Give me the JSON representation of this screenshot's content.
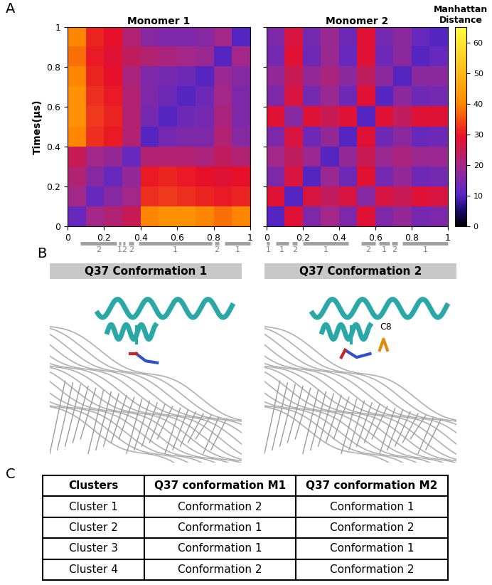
{
  "chart_data": [
    {
      "type": "heatmap",
      "title": "Monomer 1",
      "ylabel": "Times(μs)",
      "xlim": [
        0,
        1
      ],
      "ylim": [
        0,
        1
      ],
      "xticks": [
        0,
        0.2,
        0.4,
        0.6,
        0.8,
        1
      ],
      "yticks": [
        0,
        0.2,
        0.4,
        0.6,
        0.8,
        1
      ],
      "tick_labels": true,
      "cells": [
        [
          12,
          20,
          22,
          25,
          40,
          42,
          42,
          40,
          38,
          40
        ],
        [
          20,
          12,
          16,
          20,
          32,
          33,
          32,
          31,
          30,
          31
        ],
        [
          22,
          16,
          12,
          18,
          30,
          31,
          30,
          29,
          28,
          29
        ],
        [
          25,
          20,
          18,
          12,
          22,
          22,
          22,
          21,
          24,
          22
        ],
        [
          40,
          32,
          30,
          22,
          10,
          14,
          15,
          15,
          22,
          16
        ],
        [
          42,
          33,
          31,
          22,
          14,
          10,
          13,
          14,
          21,
          15
        ],
        [
          42,
          32,
          30,
          22,
          15,
          13,
          10,
          13,
          20,
          15
        ],
        [
          40,
          31,
          29,
          21,
          15,
          14,
          13,
          10,
          19,
          16
        ],
        [
          38,
          30,
          28,
          24,
          22,
          21,
          20,
          19,
          10,
          20
        ],
        [
          40,
          31,
          29,
          22,
          16,
          15,
          15,
          16,
          20,
          10
        ]
      ],
      "clusters": [
        {
          "start": 0.07,
          "end": 0.27,
          "label": 2
        },
        {
          "start": 0.28,
          "end": 0.29,
          "label": 1
        },
        {
          "start": 0.305,
          "end": 0.315,
          "label": 2
        },
        {
          "start": 0.335,
          "end": 0.36,
          "label": 2
        },
        {
          "start": 0.39,
          "end": 0.79,
          "label": 1
        },
        {
          "start": 0.805,
          "end": 0.83,
          "label": 2
        },
        {
          "start": 0.86,
          "end": 1.0,
          "label": 1
        }
      ]
    },
    {
      "type": "heatmap",
      "title": "Monomer 2",
      "xlim": [
        0,
        1
      ],
      "ylim": [
        0,
        1
      ],
      "xticks": [
        0,
        0.2,
        0.4,
        0.6,
        0.8,
        1
      ],
      "yticks": [
        0,
        0.2,
        0.4,
        0.6,
        0.8,
        1
      ],
      "tick_labels": "x",
      "cells": [
        [
          10,
          28,
          15,
          20,
          15,
          28,
          15,
          18,
          14,
          15
        ],
        [
          28,
          10,
          27,
          24,
          27,
          16,
          27,
          25,
          28,
          27
        ],
        [
          15,
          27,
          10,
          19,
          13,
          28,
          14,
          18,
          13,
          14
        ],
        [
          20,
          24,
          19,
          10,
          18,
          25,
          19,
          21,
          19,
          19
        ],
        [
          15,
          27,
          13,
          18,
          10,
          28,
          13,
          17,
          12,
          13
        ],
        [
          28,
          16,
          28,
          25,
          28,
          10,
          28,
          24,
          28,
          28
        ],
        [
          15,
          27,
          14,
          19,
          13,
          28,
          10,
          17,
          13,
          14
        ],
        [
          18,
          25,
          18,
          21,
          17,
          24,
          17,
          10,
          17,
          17
        ],
        [
          14,
          28,
          13,
          19,
          12,
          28,
          13,
          17,
          10,
          12
        ],
        [
          15,
          27,
          14,
          19,
          13,
          28,
          14,
          17,
          12,
          10
        ]
      ],
      "clusters": [
        {
          "start": 0.0,
          "end": 0.015,
          "label": 1
        },
        {
          "start": 0.05,
          "end": 0.12,
          "label": 1
        },
        {
          "start": 0.14,
          "end": 0.17,
          "label": 2
        },
        {
          "start": 0.2,
          "end": 0.45,
          "label": 1
        },
        {
          "start": 0.52,
          "end": 0.6,
          "label": 2
        },
        {
          "start": 0.62,
          "end": 0.68,
          "label": 1
        },
        {
          "start": 0.69,
          "end": 0.72,
          "label": 2
        },
        {
          "start": 0.75,
          "end": 1.0,
          "label": 1
        }
      ]
    }
  ],
  "colorbar": {
    "label": "Manhattan Distance",
    "range": [
      0,
      65
    ],
    "ticks": [
      0,
      10,
      20,
      30,
      40,
      50,
      60
    ]
  },
  "panel_labels": [
    "A",
    "B",
    "C"
  ],
  "structures": {
    "headers": [
      "Q37 Conformation 1",
      "Q37 Conformation 2"
    ],
    "annotation": "C8"
  },
  "table": {
    "header": [
      "Clusters",
      "Q37 conformation M1",
      "Q37 conformation M2"
    ],
    "rows": [
      [
        "Cluster 1",
        "Conformation 2",
        "Conformation 1"
      ],
      [
        "Cluster 2",
        "Conformation 1",
        "Conformation 2"
      ],
      [
        "Cluster 3",
        "Conformation 1",
        "Conformation 1"
      ],
      [
        "Cluster 4",
        "Conformation 2",
        "Conformation 2"
      ]
    ]
  }
}
